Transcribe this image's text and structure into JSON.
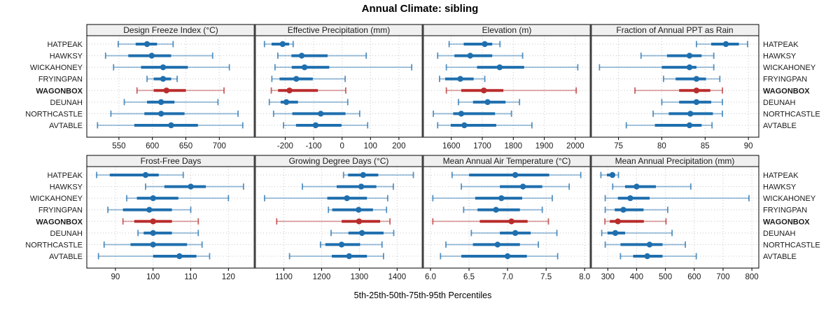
{
  "colors": {
    "series_blue": "#1f6fae",
    "highlight_red": "#b92d2d",
    "strip_bg": "#f0f0f0",
    "panel_bg": "#ffffff",
    "grid": "#c8c8c8",
    "border": "#000000",
    "divider": "#3f3f3f",
    "tick_text": "#1a1a1a"
  },
  "chart_data": {
    "type": "scatter",
    "subtype": "five-number-percentile-dotplot (lattice, 2x4 panels)",
    "title": "Annual Climate: sibling",
    "caption": "5th-25th-50th-75th-95th Percentiles",
    "percentiles": [
      5,
      25,
      50,
      75,
      95
    ],
    "stations": [
      "HATPEAK",
      "HAWKSY",
      "WICKAHONEY",
      "FRYINGPAN",
      "WAGONBOX",
      "DEUNAH",
      "NORTHCASTLE",
      "AVTABLE"
    ],
    "highlighted_station": "WAGONBOX",
    "layout": {
      "rows": 2,
      "cols": 4,
      "grid": "dotted",
      "legend": "none",
      "row_labels_both_sides": true
    },
    "panels": [
      {
        "title": "Design Freeze Index (°C)",
        "xlim": [
          502,
          753
        ],
        "ticks": [
          550,
          600,
          650,
          700
        ],
        "tick_labels": [
          "550",
          "600",
          "650",
          "700"
        ],
        "values": {
          "HATPEAK": [
            549,
            575,
            592,
            607,
            631
          ],
          "HAWKSY": [
            530,
            564,
            599,
            628,
            690
          ],
          "WICKAHONEY": [
            542,
            583,
            616,
            653,
            715
          ],
          "FRYINGPAN": [
            592,
            602,
            616,
            628,
            637
          ],
          "WAGONBOX": [
            577,
            602,
            621,
            650,
            707
          ],
          "DEUNAH": [
            558,
            592,
            613,
            633,
            698
          ],
          "NORTHCASTLE": [
            538,
            588,
            613,
            648,
            728
          ],
          "AVTABLE": [
            518,
            573,
            628,
            668,
            735
          ]
        }
      },
      {
        "title": "Effective Precipitation (mm)",
        "xlim": [
          -307,
          284
        ],
        "ticks": [
          -200,
          -100,
          0,
          100,
          200
        ],
        "tick_labels": [
          "-200",
          "-100",
          "0",
          "100",
          "200"
        ],
        "values": {
          "HATPEAK": [
            -273,
            -248,
            -209,
            -186,
            -172
          ],
          "HAWKSY": [
            -226,
            -178,
            -142,
            -51,
            85
          ],
          "WICKAHONEY": [
            -236,
            -177,
            -132,
            -45,
            245
          ],
          "FRYINGPAN": [
            -247,
            -220,
            -161,
            -103,
            11
          ],
          "WAGONBOX": [
            -249,
            -225,
            -185,
            -85,
            13
          ],
          "DEUNAH": [
            -256,
            -216,
            -196,
            -155,
            20
          ],
          "NORTHCASTLE": [
            -241,
            -175,
            -75,
            12,
            62
          ],
          "AVTABLE": [
            -206,
            -162,
            -93,
            -2,
            90
          ]
        }
      },
      {
        "title": "Elevation (m)",
        "xlim": [
          1508,
          2050
        ],
        "ticks": [
          1600,
          1700,
          1800,
          1900,
          2000
        ],
        "tick_labels": [
          "1600",
          "1700",
          "1800",
          "1900",
          "2000"
        ],
        "values": {
          "HATPEAK": [
            1593,
            1640,
            1708,
            1732,
            1757
          ],
          "HAWKSY": [
            1556,
            1610,
            1661,
            1732,
            1830
          ],
          "WICKAHONEY": [
            1584,
            1683,
            1756,
            1835,
            2008
          ],
          "FRYINGPAN": [
            1562,
            1580,
            1629,
            1672,
            1708
          ],
          "WAGONBOX": [
            1584,
            1632,
            1705,
            1768,
            2003
          ],
          "DEUNAH": [
            1623,
            1670,
            1717,
            1775,
            1820
          ],
          "NORTHCASTLE": [
            1542,
            1606,
            1632,
            1741,
            1794
          ],
          "AVTABLE": [
            1556,
            1598,
            1642,
            1745,
            1860
          ]
        }
      },
      {
        "title": "Fraction of Annual PPT as Rain",
        "xlim": [
          71.8,
          91.2
        ],
        "ticks": [
          75,
          80,
          85,
          90
        ],
        "tick_labels": [
          "75",
          "80",
          "85",
          "90"
        ],
        "values": {
          "HATPEAK": [
            84.0,
            85.7,
            87.4,
            88.9,
            89.9
          ],
          "HAWKSY": [
            77.6,
            80.6,
            83.2,
            84.6,
            86.0
          ],
          "WICKAHONEY": [
            72.8,
            80.0,
            83.2,
            84.0,
            86.0
          ],
          "FRYINGPAN": [
            80.2,
            81.6,
            84.0,
            85.1,
            86.7
          ],
          "WAGONBOX": [
            76.9,
            82.0,
            84.0,
            85.6,
            87.0
          ],
          "DEUNAH": [
            80.0,
            82.0,
            84.0,
            85.7,
            87.0
          ],
          "NORTHCASTLE": [
            79.0,
            80.8,
            83.3,
            85.9,
            87.0
          ],
          "AVTABLE": [
            75.9,
            79.2,
            83.2,
            84.6,
            85.8
          ]
        }
      },
      {
        "title": "Frost-Free Days",
        "xlim": [
          82.4,
          127
        ],
        "ticks": [
          90,
          100,
          110,
          120
        ],
        "tick_labels": [
          "90",
          "100",
          "110",
          "120"
        ],
        "values": {
          "HATPEAK": [
            85,
            88.5,
            98,
            101.5,
            108
          ],
          "HAWKSY": [
            98,
            103,
            110,
            114,
            124
          ],
          "WICKAHONEY": [
            93,
            95.7,
            100,
            106.7,
            120
          ],
          "FRYINGPAN": [
            88,
            92,
            99,
            105,
            110
          ],
          "WAGONBOX": [
            92,
            95,
            100,
            105,
            112
          ],
          "DEUNAH": [
            96,
            97.5,
            100,
            105,
            112
          ],
          "NORTHCASTLE": [
            87,
            94,
            100,
            109,
            113
          ],
          "AVTABLE": [
            85.5,
            100,
            107,
            111.5,
            115
          ]
        }
      },
      {
        "title": "Growing Degree Days (°C)",
        "xlim": [
          1023,
          1468
        ],
        "ticks": [
          1100,
          1200,
          1300,
          1400
        ],
        "tick_labels": [
          "1100",
          "1200",
          "1300",
          "1400"
        ],
        "values": {
          "HATPEAK": [
            1258,
            1270,
            1310,
            1350,
            1443
          ],
          "HAWKSY": [
            1149,
            1240,
            1305,
            1345,
            1390
          ],
          "WICKAHONEY": [
            1049,
            1215,
            1267,
            1320,
            1375
          ],
          "FRYINGPAN": [
            1218,
            1228,
            1298,
            1336,
            1372
          ],
          "WAGONBOX": [
            1081,
            1253,
            1299,
            1355,
            1381
          ],
          "DEUNAH": [
            1225,
            1271,
            1307,
            1364,
            1391
          ],
          "NORTHCASTLE": [
            1197,
            1210,
            1253,
            1302,
            1360
          ],
          "AVTABLE": [
            1115,
            1227,
            1273,
            1320,
            1364
          ]
        }
      },
      {
        "title": "Mean Annual Air Temperature (°C)",
        "xlim": [
          5.9,
          8.08
        ],
        "ticks": [
          6.0,
          6.5,
          7.0,
          7.5,
          8.0
        ],
        "tick_labels": [
          "6.0",
          "6.5",
          "7.0",
          "7.5",
          "8.0"
        ],
        "values": {
          "HATPEAK": [
            6.28,
            6.5,
            7.1,
            7.54,
            7.95
          ],
          "HAWKSY": [
            6.4,
            6.9,
            7.2,
            7.45,
            7.8
          ],
          "WICKAHONEY": [
            6.03,
            6.58,
            6.92,
            7.19,
            7.58
          ],
          "FRYINGPAN": [
            6.43,
            6.61,
            6.85,
            7.16,
            7.45
          ],
          "WAGONBOX": [
            6.03,
            6.64,
            7.05,
            7.26,
            7.53
          ],
          "DEUNAH": [
            6.53,
            6.9,
            7.1,
            7.3,
            7.64
          ],
          "NORTHCASTLE": [
            6.2,
            6.55,
            6.87,
            7.16,
            7.4
          ],
          "AVTABLE": [
            6.13,
            6.4,
            7.0,
            7.25,
            7.65
          ]
        }
      },
      {
        "title": "Mean Annual Precipitation (mm)",
        "xlim": [
          241,
          824
        ],
        "ticks": [
          300,
          400,
          500,
          600,
          700,
          800
        ],
        "tick_labels": [
          "300",
          "400",
          "500",
          "600",
          "700",
          "800"
        ],
        "values": {
          "HATPEAK": [
            276,
            297,
            316,
            325,
            337
          ],
          "HAWKSY": [
            317,
            360,
            400,
            467,
            588
          ],
          "WICKAHONEY": [
            291,
            335,
            378,
            445,
            790
          ],
          "FRYINGPAN": [
            291,
            324,
            354,
            424,
            508
          ],
          "WAGONBOX": [
            290,
            307,
            335,
            425,
            502
          ],
          "DEUNAH": [
            279,
            299,
            326,
            360,
            523
          ],
          "NORTHCASTLE": [
            291,
            344,
            445,
            490,
            569
          ],
          "AVTABLE": [
            344,
            388,
            437,
            490,
            607
          ]
        }
      }
    ]
  }
}
